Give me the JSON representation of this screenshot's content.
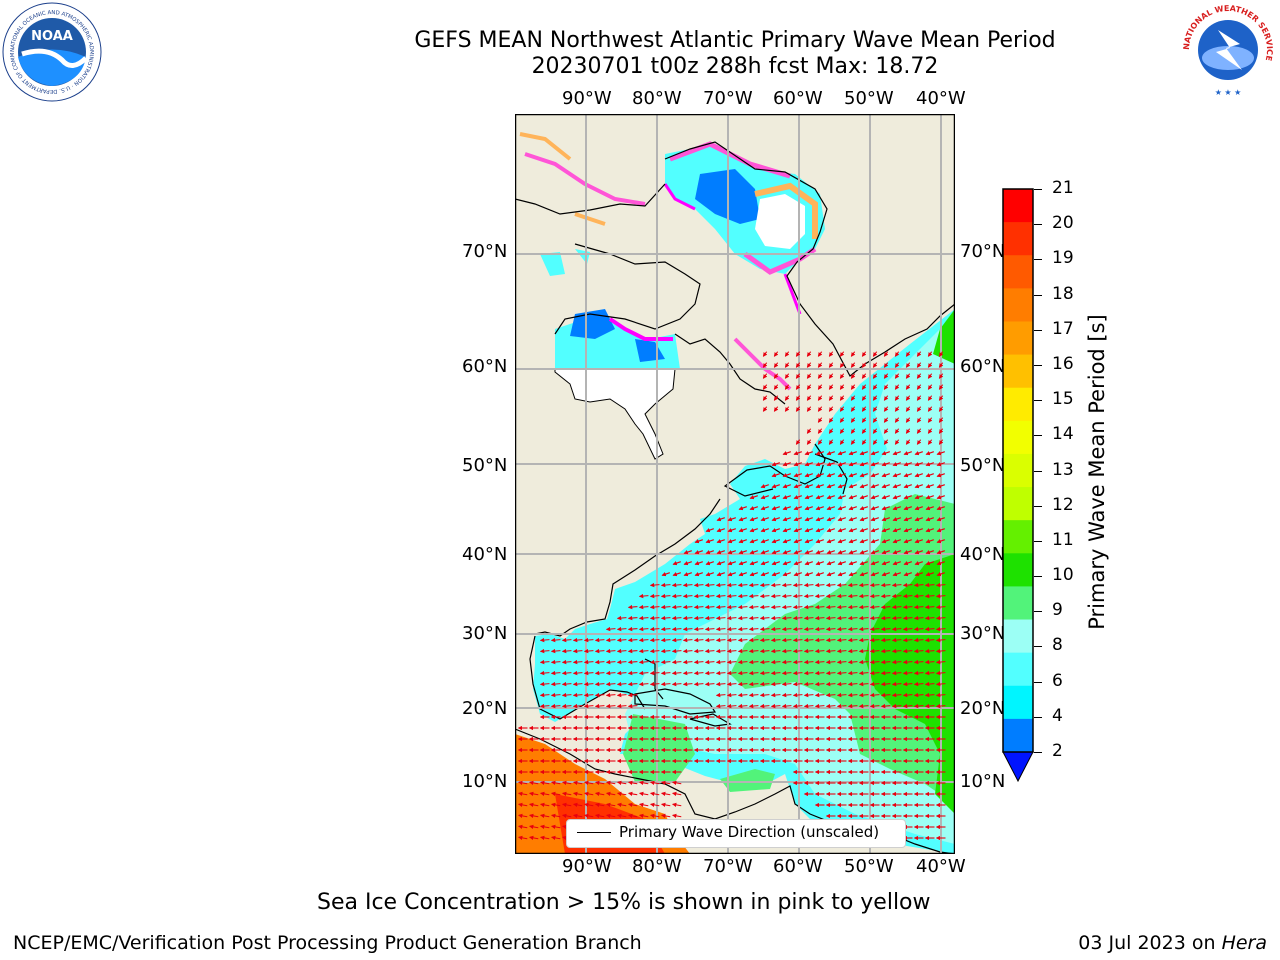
{
  "header": {
    "title_line1": "GEFS MEAN Northwest Atlantic Primary Wave Mean Period",
    "title_line2": "20230701 t00z 288h fcst   Max: 18.72"
  },
  "logos": {
    "noaa_text": "NOAA",
    "noaa_ring": "NATIONAL OCEANIC AND ATMOSPHERIC ADMINISTRATION · U.S. DEPARTMENT OF COMMERCE",
    "nws_ring": "NATIONAL WEATHER SERVICE"
  },
  "map": {
    "lon_labels": [
      "90°W",
      "80°W",
      "70°W",
      "60°W",
      "50°W",
      "40°W"
    ],
    "lat_labels": [
      "70°N",
      "60°N",
      "50°N",
      "40°N",
      "30°N",
      "20°N",
      "10°N"
    ],
    "legend_label": "Primary Wave Direction (unscaled)"
  },
  "colorbar": {
    "label": "Primary Wave Mean Period [s]",
    "ticks": [
      "21",
      "20",
      "19",
      "18",
      "17",
      "16",
      "15",
      "14",
      "13",
      "12",
      "11",
      "10",
      "9",
      "8",
      "6",
      "4",
      "2"
    ],
    "colors": [
      "#ff0000",
      "#ff3000",
      "#ff5a00",
      "#ff7d00",
      "#ff9c00",
      "#ffc000",
      "#ffeb00",
      "#f2ff00",
      "#daff00",
      "#bfff00",
      "#64f000",
      "#1ee100",
      "#52f37a",
      "#9cfff5",
      "#52ffff",
      "#00f5ff",
      "#007dff"
    ],
    "under_color": "#0014ff"
  },
  "colors": {
    "land": "#efecdc",
    "arrow": "#e8000f",
    "grid": "#b4b4b4",
    "ice_pink": "#ff55d7",
    "ice_magenta": "#ff00ff",
    "ice_orange": "#ffb45a"
  },
  "caption": "Sea Ice Concentration > 15% is shown in pink to yellow",
  "footer": {
    "left": "NCEP/EMC/Verification Post Processing Product Generation Branch",
    "date": "03 Jul 2023 on ",
    "machine": "Hera"
  }
}
